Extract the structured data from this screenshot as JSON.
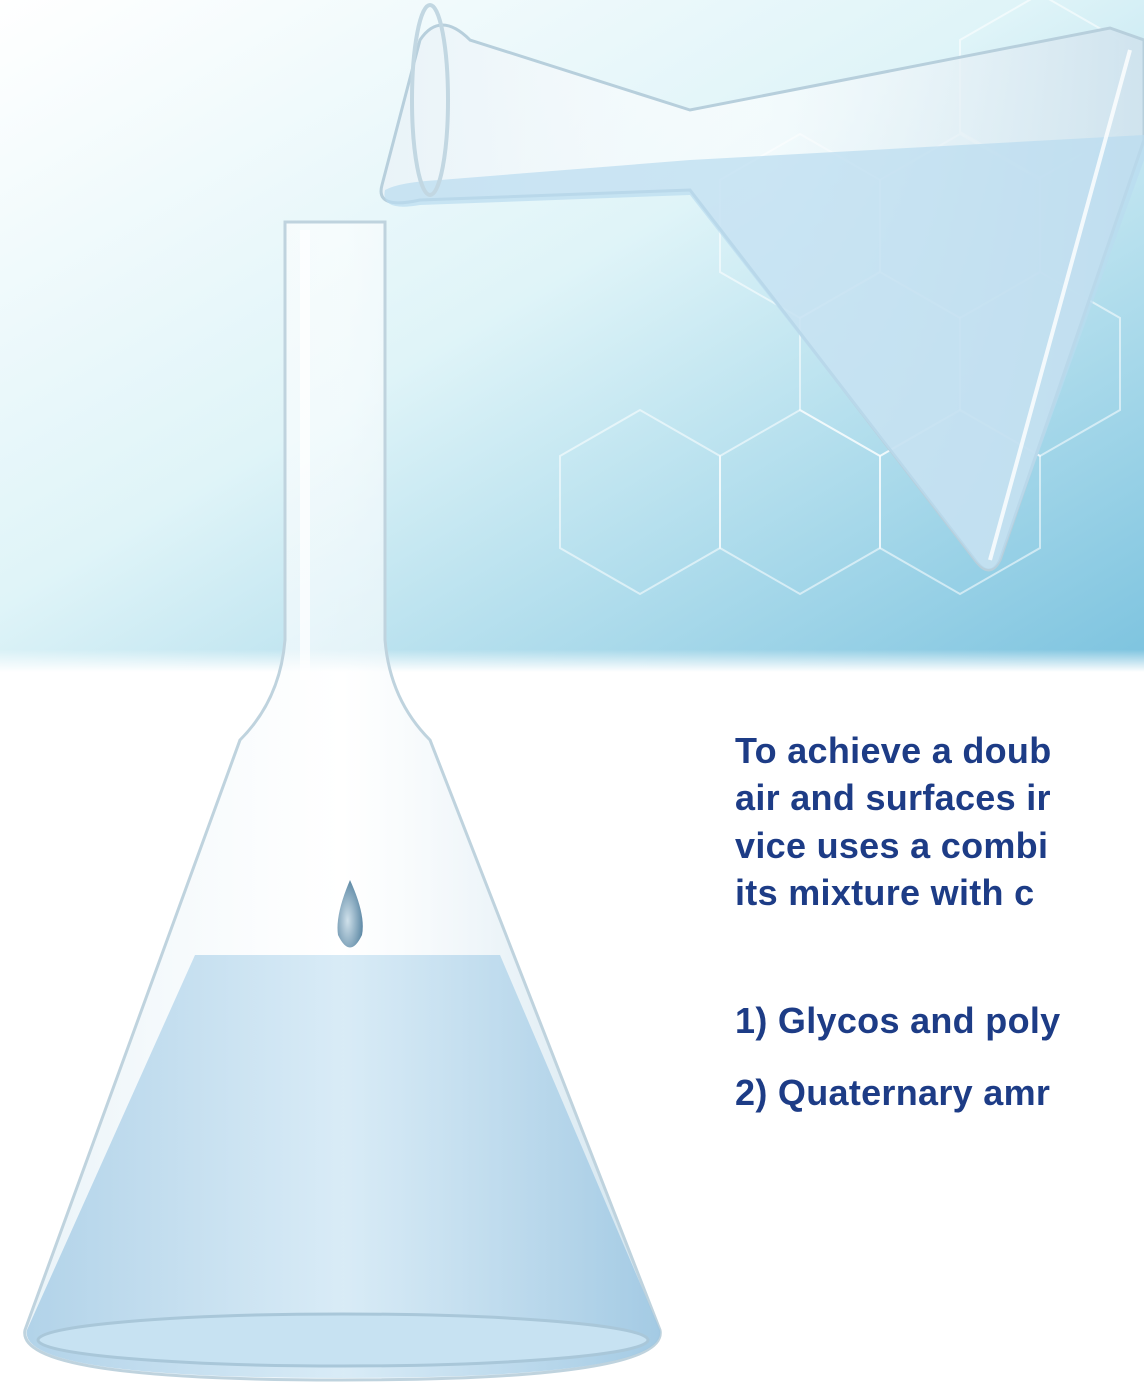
{
  "paragraph": {
    "lines": [
      "To achieve a doub",
      "air and surfaces ir",
      "vice uses a combi",
      "its mixture with c"
    ]
  },
  "list": [
    "1) Glycos and poly",
    "2) Quaternary amr"
  ]
}
